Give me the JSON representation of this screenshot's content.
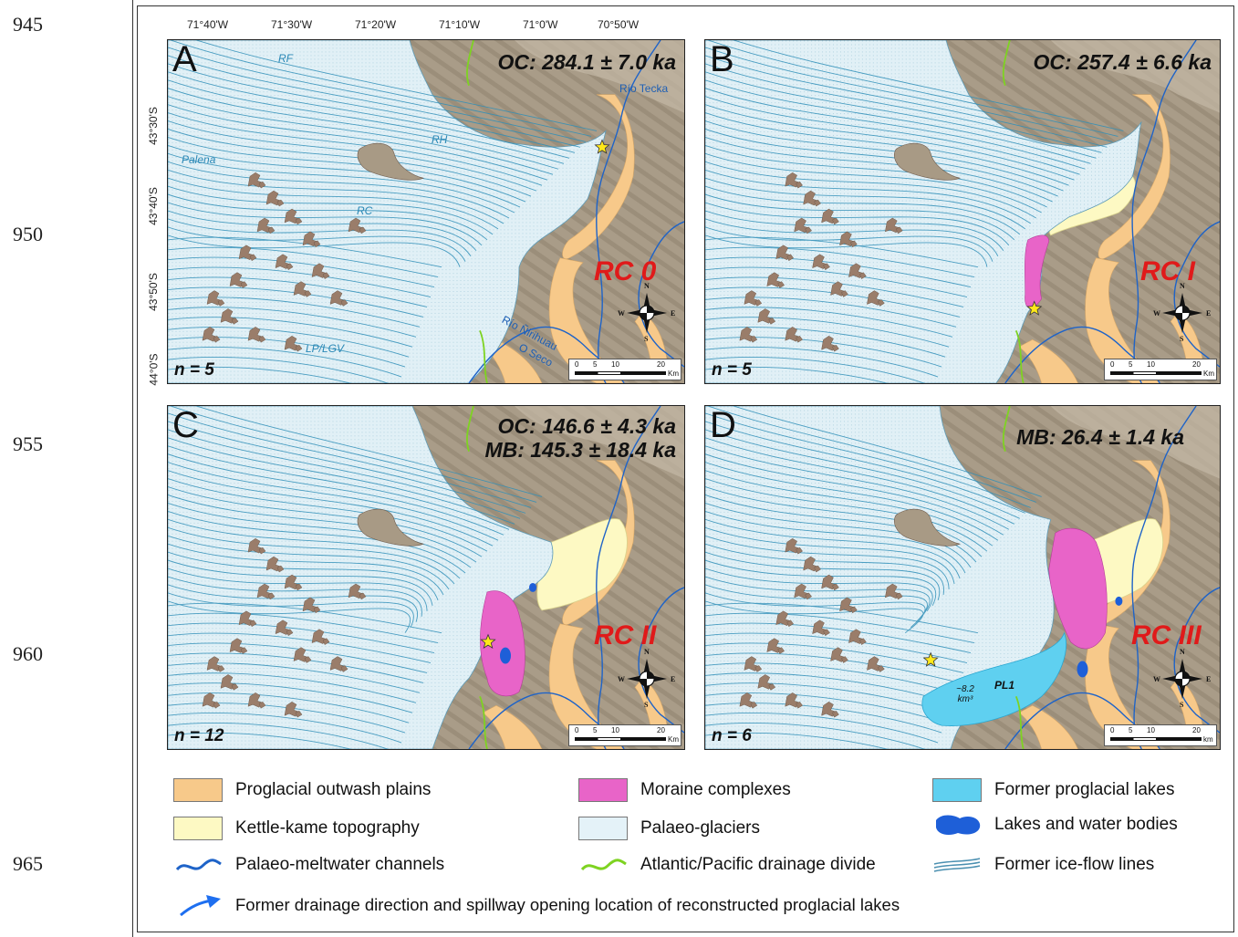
{
  "line_numbers": [
    "945",
    "950",
    "955",
    "960",
    "965"
  ],
  "longitude_labels": [
    "71°40'W",
    "71°30'W",
    "71°20'W",
    "71°10'W",
    "71°0'W",
    "70°50'W"
  ],
  "latitude_labels": [
    "43°30'S",
    "43°40'S",
    "43°50'S",
    "44°0'S"
  ],
  "panels": [
    {
      "letter": "A",
      "date_lines": [
        "OC: 284.1 ± 7.0 ka"
      ],
      "stage": "RC 0",
      "n": "n = 5"
    },
    {
      "letter": "B",
      "date_lines": [
        "OC: 257.4 ± 6.6 ka"
      ],
      "stage": "RC I",
      "n": "n = 5"
    },
    {
      "letter": "C",
      "date_lines": [
        "OC: 146.6 ± 4.3 ka",
        "MB: 145.3 ± 18.4 ka"
      ],
      "stage": "RC II",
      "n": "n = 12"
    },
    {
      "letter": "D",
      "date_lines": [
        "MB: 26.4 ± 1.4 ka"
      ],
      "stage": "RC III",
      "n": "n = 6"
    }
  ],
  "panel_a_labels": {
    "rf": "RF",
    "rh": "RH",
    "palena": "Palena",
    "rc": "RC",
    "lp_lgv": "LP/LGV",
    "rio_tecka": "Río Tecka",
    "rio_nirihuau": "Río Ñirihuau",
    "o_seco": "O Seco"
  },
  "panel_d_labels": {
    "volume_line1": "~8.2",
    "volume_line2": "km³",
    "pl1": "PL1"
  },
  "scalebar": {
    "ticks": [
      "0",
      "5",
      "10",
      "20"
    ],
    "unit": "Km",
    "unit_d": "km"
  },
  "compass": {
    "n": "N",
    "s": "S",
    "w": "W",
    "e": "E"
  },
  "legend": [
    {
      "label": "Proglacial outwash plains",
      "symbol": "swatch",
      "color": "#f7c98a"
    },
    {
      "label": "Moraine complexes",
      "symbol": "swatch",
      "color": "#e864c8"
    },
    {
      "label": "Former proglacial lakes",
      "symbol": "swatch",
      "color": "#5fd0f0"
    },
    {
      "label": "Kettle-kame topography",
      "symbol": "swatch",
      "color": "#fdf9c3"
    },
    {
      "label": "Palaeo-glaciers",
      "symbol": "swatch",
      "color": "#e4f2f8"
    },
    {
      "label": "Lakes and water bodies",
      "symbol": "lake-blob",
      "color": "#1e5fd8"
    },
    {
      "label": "Palaeo-meltwater channels",
      "symbol": "wavy-line",
      "color": "#1e63c8"
    },
    {
      "label": "Atlantic/Pacific drainage divide",
      "symbol": "wavy-line",
      "color": "#7ed321"
    },
    {
      "label": "Former ice-flow lines",
      "symbol": "double-line",
      "color": "#4a8fb0"
    },
    {
      "label": "Former drainage direction and spillway opening location of reconstructed proglacial lakes",
      "symbol": "arrow",
      "color": "#1e6ff0"
    }
  ],
  "colors": {
    "terrain": "#a89a85",
    "ice": "#dcedf4",
    "flowline": "#2f8fb8",
    "star": "#ffe81a"
  }
}
